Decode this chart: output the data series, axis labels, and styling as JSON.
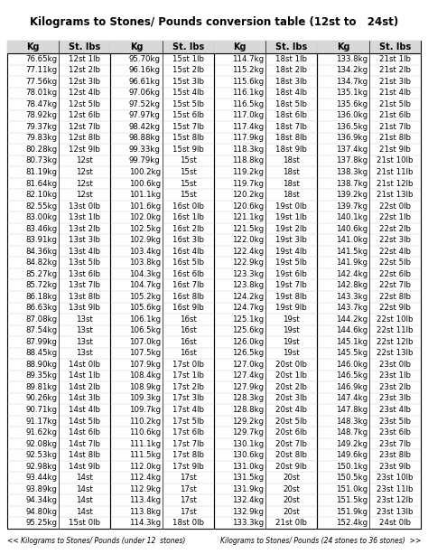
{
  "title": "Kilograms to Stones/ Pounds conversion table (12st to   24st)",
  "columns": [
    {
      "header1": "Kg",
      "header2": "St. lbs",
      "rows": [
        [
          "76.65kg",
          "12st 1lb"
        ],
        [
          "77.11kg",
          "12st 2lb"
        ],
        [
          "77.56kg",
          "12st 3lb"
        ],
        [
          "78.01kg",
          "12st 4lb"
        ],
        [
          "78.47kg",
          "12st 5lb"
        ],
        [
          "78.92kg",
          "12st 6lb"
        ],
        [
          "79.37kg",
          "12st 7lb"
        ],
        [
          "79.83kg",
          "12st 8lb"
        ],
        [
          "80.28kg",
          "12st 9lb"
        ],
        [
          "80.73kg",
          "12st"
        ],
        [
          "81.19kg",
          "12st"
        ],
        [
          "81.64kg",
          "12st"
        ],
        [
          "82.10kg",
          "12st"
        ],
        [
          "82.55kg",
          "13st 0lb"
        ],
        [
          "83.00kg",
          "13st 1lb"
        ],
        [
          "83.46kg",
          "13st 2lb"
        ],
        [
          "83.91kg",
          "13st 3lb"
        ],
        [
          "84.36kg",
          "13st 4lb"
        ],
        [
          "84.82kg",
          "13st 5lb"
        ],
        [
          "85.27kg",
          "13st 6lb"
        ],
        [
          "85.72kg",
          "13st 7lb"
        ],
        [
          "86.18kg",
          "13st 8lb"
        ],
        [
          "86.63kg",
          "13st 9lb"
        ],
        [
          "87.08kg",
          "13st"
        ],
        [
          "87.54kg",
          "13st"
        ],
        [
          "87.99kg",
          "13st"
        ],
        [
          "88.45kg",
          "13st"
        ],
        [
          "88.90kg",
          "14st 0lb"
        ],
        [
          "89.35kg",
          "14st 1lb"
        ],
        [
          "89.81kg",
          "14st 2lb"
        ],
        [
          "90.26kg",
          "14st 3lb"
        ],
        [
          "90.71kg",
          "14st 4lb"
        ],
        [
          "91.17kg",
          "14st 5lb"
        ],
        [
          "91.62kg",
          "14st 6lb"
        ],
        [
          "92.08kg",
          "14st 7lb"
        ],
        [
          "92.53kg",
          "14st 8lb"
        ],
        [
          "92.98kg",
          "14st 9lb"
        ],
        [
          "93.44kg",
          "14st"
        ],
        [
          "93.89kg",
          "14st"
        ],
        [
          "94.34kg",
          "14st"
        ],
        [
          "94.80kg",
          "14st"
        ],
        [
          "95.25kg",
          "15st 0lb"
        ]
      ]
    },
    {
      "header1": "Kg",
      "header2": "St. lbs",
      "rows": [
        [
          "95.70kg",
          "15st 1lb"
        ],
        [
          "96.16kg",
          "15st 2lb"
        ],
        [
          "96.61kg",
          "15st 3lb"
        ],
        [
          "97.06kg",
          "15st 4lb"
        ],
        [
          "97.52kg",
          "15st 5lb"
        ],
        [
          "97.97kg",
          "15st 6lb"
        ],
        [
          "98.42kg",
          "15st 7lb"
        ],
        [
          "98.88kg",
          "15st 8lb"
        ],
        [
          "99.33kg",
          "15st 9lb"
        ],
        [
          "99.79kg",
          "15st"
        ],
        [
          "100.2kg",
          "15st"
        ],
        [
          "100.6kg",
          "15st"
        ],
        [
          "101.1kg",
          "15st"
        ],
        [
          "101.6kg",
          "16st 0lb"
        ],
        [
          "102.0kg",
          "16st 1lb"
        ],
        [
          "102.5kg",
          "16st 2lb"
        ],
        [
          "102.9kg",
          "16st 3lb"
        ],
        [
          "103.4kg",
          "16st 4lb"
        ],
        [
          "103.8kg",
          "16st 5lb"
        ],
        [
          "104.3kg",
          "16st 6lb"
        ],
        [
          "104.7kg",
          "16st 7lb"
        ],
        [
          "105.2kg",
          "16st 8lb"
        ],
        [
          "105.6kg",
          "16st 9lb"
        ],
        [
          "106.1kg",
          "16st"
        ],
        [
          "106.5kg",
          "16st"
        ],
        [
          "107.0kg",
          "16st"
        ],
        [
          "107.5kg",
          "16st"
        ],
        [
          "107.9kg",
          "17st 0lb"
        ],
        [
          "108.4kg",
          "17st 1lb"
        ],
        [
          "108.9kg",
          "17st 2lb"
        ],
        [
          "109.3kg",
          "17st 3lb"
        ],
        [
          "109.7kg",
          "17st 4lb"
        ],
        [
          "110.2kg",
          "17st 5lb"
        ],
        [
          "110.6kg",
          "17st 6lb"
        ],
        [
          "111.1kg",
          "17st 7lb"
        ],
        [
          "111.5kg",
          "17st 8lb"
        ],
        [
          "112.0kg",
          "17st 9lb"
        ],
        [
          "112.4kg",
          "17st"
        ],
        [
          "112.9kg",
          "17st"
        ],
        [
          "113.4kg",
          "17st"
        ],
        [
          "113.8kg",
          "17st"
        ],
        [
          "114.3kg",
          "18st 0lb"
        ]
      ]
    },
    {
      "header1": "Kg",
      "header2": "St. lbs",
      "rows": [
        [
          "114.7kg",
          "18st 1lb"
        ],
        [
          "115.2kg",
          "18st 2lb"
        ],
        [
          "115.6kg",
          "18st 3lb"
        ],
        [
          "116.1kg",
          "18st 4lb"
        ],
        [
          "116.5kg",
          "18st 5lb"
        ],
        [
          "117.0kg",
          "18st 6lb"
        ],
        [
          "117.4kg",
          "18st 7lb"
        ],
        [
          "117.9kg",
          "18st 8lb"
        ],
        [
          "118.3kg",
          "18st 9lb"
        ],
        [
          "118.8kg",
          "18st"
        ],
        [
          "119.2kg",
          "18st"
        ],
        [
          "119.7kg",
          "18st"
        ],
        [
          "120.2kg",
          "18st"
        ],
        [
          "120.6kg",
          "19st 0lb"
        ],
        [
          "121.1kg",
          "19st 1lb"
        ],
        [
          "121.5kg",
          "19st 2lb"
        ],
        [
          "122.0kg",
          "19st 3lb"
        ],
        [
          "122.4kg",
          "19st 4lb"
        ],
        [
          "122.9kg",
          "19st 5lb"
        ],
        [
          "123.3kg",
          "19st 6lb"
        ],
        [
          "123.8kg",
          "19st 7lb"
        ],
        [
          "124.2kg",
          "19st 8lb"
        ],
        [
          "124.7kg",
          "19st 9lb"
        ],
        [
          "125.1kg",
          "19st"
        ],
        [
          "125.6kg",
          "19st"
        ],
        [
          "126.0kg",
          "19st"
        ],
        [
          "126.5kg",
          "19st"
        ],
        [
          "127.0kg",
          "20st 0lb"
        ],
        [
          "127.4kg",
          "20st 1lb"
        ],
        [
          "127.9kg",
          "20st 2lb"
        ],
        [
          "128.3kg",
          "20st 3lb"
        ],
        [
          "128.8kg",
          "20st 4lb"
        ],
        [
          "129.2kg",
          "20st 5lb"
        ],
        [
          "129.7kg",
          "20st 6lb"
        ],
        [
          "130.1kg",
          "20st 7lb"
        ],
        [
          "130.6kg",
          "20st 8lb"
        ],
        [
          "131.0kg",
          "20st 9lb"
        ],
        [
          "131.5kg",
          "20st"
        ],
        [
          "131.9kg",
          "20st"
        ],
        [
          "132.4kg",
          "20st"
        ],
        [
          "132.9kg",
          "20st"
        ],
        [
          "133.3kg",
          "21st 0lb"
        ]
      ]
    },
    {
      "header1": "Kg",
      "header2": "St. lbs",
      "rows": [
        [
          "133.8kg",
          "21st 1lb"
        ],
        [
          "134.2kg",
          "21st 2lb"
        ],
        [
          "134.7kg",
          "21st 3lb"
        ],
        [
          "135.1kg",
          "21st 4lb"
        ],
        [
          "135.6kg",
          "21st 5lb"
        ],
        [
          "136.0kg",
          "21st 6lb"
        ],
        [
          "136.5kg",
          "21st 7lb"
        ],
        [
          "136.9kg",
          "21st 8lb"
        ],
        [
          "137.4kg",
          "21st 9lb"
        ],
        [
          "137.8kg",
          "21st 10lb"
        ],
        [
          "138.3kg",
          "21st 11lb"
        ],
        [
          "138.7kg",
          "21st 12lb"
        ],
        [
          "139.2kg",
          "21st 13lb"
        ],
        [
          "139.7kg",
          "22st 0lb"
        ],
        [
          "140.1kg",
          "22st 1lb"
        ],
        [
          "140.6kg",
          "22st 2lb"
        ],
        [
          "141.0kg",
          "22st 3lb"
        ],
        [
          "141.5kg",
          "22st 4lb"
        ],
        [
          "141.9kg",
          "22st 5lb"
        ],
        [
          "142.4kg",
          "22st 6lb"
        ],
        [
          "142.8kg",
          "22st 7lb"
        ],
        [
          "143.3kg",
          "22st 8lb"
        ],
        [
          "143.7kg",
          "22st 9lb"
        ],
        [
          "144.2kg",
          "22st 10lb"
        ],
        [
          "144.6kg",
          "22st 11lb"
        ],
        [
          "145.1kg",
          "22st 12lb"
        ],
        [
          "145.5kg",
          "22st 13lb"
        ],
        [
          "146.0kg",
          "23st 0lb"
        ],
        [
          "146.5kg",
          "23st 1lb"
        ],
        [
          "146.9kg",
          "23st 2lb"
        ],
        [
          "147.4kg",
          "23st 3lb"
        ],
        [
          "147.8kg",
          "23st 4lb"
        ],
        [
          "148.3kg",
          "23st 5lb"
        ],
        [
          "148.7kg",
          "23st 6lb"
        ],
        [
          "149.2kg",
          "23st 7lb"
        ],
        [
          "149.6kg",
          "23st 8lb"
        ],
        [
          "150.1kg",
          "23st 9lb"
        ],
        [
          "150.5kg",
          "23st 10lb"
        ],
        [
          "151.0kg",
          "23st 11lb"
        ],
        [
          "151.5kg",
          "23st 12lb"
        ],
        [
          "151.9kg",
          "23st 13lb"
        ],
        [
          "152.4kg",
          "24st 0lb"
        ]
      ]
    }
  ],
  "footer_left": "<< Kilograms to Stones/ Pounds (under 12  stones)",
  "footer_right": "Kilograms to Stones/ Pounds (24 stones to 36 stones)  >>",
  "bg_color": "#ffffff",
  "header_bg": "#d8d8d8",
  "border_color": "#000000",
  "title_fontsize": 8.5,
  "cell_fontsize": 6.2,
  "header_fontsize": 7.0,
  "footer_fontsize": 5.5
}
